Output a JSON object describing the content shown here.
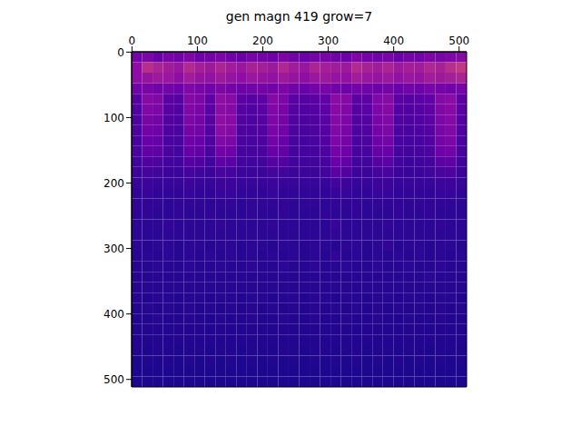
{
  "chart_data": {
    "type": "heatmap",
    "title": "gen magn 419 grow=7",
    "xlim": [
      -0.5,
      511.5
    ],
    "ylim": [
      511.5,
      -0.5
    ],
    "xticks": [
      0,
      100,
      200,
      300,
      400,
      500
    ],
    "yticks": [
      0,
      100,
      200,
      300,
      400,
      500
    ],
    "color_range": [
      0,
      1
    ],
    "cells": [
      [
        0.22,
        0.25,
        0.2,
        0.24,
        0.22,
        0.26,
        0.21,
        0.23,
        0.25,
        0.22,
        0.2,
        0.24,
        0.23,
        0.21,
        0.25,
        0.22,
        0.2,
        0.23,
        0.24,
        0.22,
        0.21,
        0.25,
        0.23,
        0.22,
        0.24,
        0.2,
        0.23,
        0.22,
        0.25,
        0.24,
        0.26,
        0.28
      ],
      [
        0.3,
        0.42,
        0.38,
        0.35,
        0.33,
        0.4,
        0.36,
        0.34,
        0.38,
        0.35,
        0.33,
        0.37,
        0.36,
        0.34,
        0.39,
        0.35,
        0.33,
        0.38,
        0.36,
        0.35,
        0.34,
        0.4,
        0.37,
        0.35,
        0.38,
        0.34,
        0.36,
        0.35,
        0.39,
        0.37,
        0.42,
        0.45
      ],
      [
        0.3,
        0.32,
        0.34,
        0.33,
        0.3,
        0.35,
        0.32,
        0.31,
        0.34,
        0.32,
        0.3,
        0.33,
        0.32,
        0.31,
        0.34,
        0.32,
        0.3,
        0.33,
        0.34,
        0.32,
        0.31,
        0.35,
        0.33,
        0.32,
        0.34,
        0.31,
        0.33,
        0.32,
        0.35,
        0.34,
        0.36,
        0.38
      ],
      [
        0.22,
        0.24,
        0.22,
        0.23,
        0.21,
        0.26,
        0.24,
        0.22,
        0.25,
        0.23,
        0.21,
        0.22,
        0.23,
        0.22,
        0.25,
        0.22,
        0.2,
        0.23,
        0.24,
        0.22,
        0.21,
        0.23,
        0.22,
        0.21,
        0.23,
        0.2,
        0.22,
        0.21,
        0.24,
        0.23,
        0.22,
        0.24
      ],
      [
        0.15,
        0.28,
        0.26,
        0.16,
        0.15,
        0.27,
        0.25,
        0.17,
        0.3,
        0.28,
        0.16,
        0.15,
        0.17,
        0.27,
        0.25,
        0.16,
        0.15,
        0.16,
        0.18,
        0.29,
        0.27,
        0.16,
        0.17,
        0.26,
        0.28,
        0.16,
        0.15,
        0.16,
        0.18,
        0.27,
        0.29,
        0.17
      ],
      [
        0.14,
        0.26,
        0.25,
        0.15,
        0.14,
        0.26,
        0.24,
        0.16,
        0.29,
        0.27,
        0.15,
        0.14,
        0.16,
        0.26,
        0.24,
        0.15,
        0.14,
        0.15,
        0.17,
        0.28,
        0.26,
        0.15,
        0.16,
        0.25,
        0.27,
        0.15,
        0.14,
        0.15,
        0.17,
        0.26,
        0.28,
        0.16
      ],
      [
        0.13,
        0.24,
        0.23,
        0.14,
        0.13,
        0.25,
        0.23,
        0.15,
        0.3,
        0.28,
        0.14,
        0.13,
        0.15,
        0.25,
        0.23,
        0.14,
        0.13,
        0.14,
        0.16,
        0.27,
        0.25,
        0.14,
        0.15,
        0.24,
        0.26,
        0.14,
        0.13,
        0.14,
        0.16,
        0.25,
        0.27,
        0.15
      ],
      [
        0.13,
        0.22,
        0.21,
        0.13,
        0.13,
        0.23,
        0.22,
        0.14,
        0.29,
        0.27,
        0.13,
        0.13,
        0.14,
        0.24,
        0.22,
        0.13,
        0.12,
        0.13,
        0.15,
        0.26,
        0.24,
        0.13,
        0.14,
        0.23,
        0.25,
        0.13,
        0.12,
        0.13,
        0.15,
        0.24,
        0.26,
        0.14
      ],
      [
        0.12,
        0.2,
        0.19,
        0.12,
        0.12,
        0.21,
        0.2,
        0.13,
        0.26,
        0.25,
        0.12,
        0.12,
        0.13,
        0.22,
        0.2,
        0.12,
        0.11,
        0.12,
        0.14,
        0.25,
        0.23,
        0.12,
        0.13,
        0.21,
        0.23,
        0.12,
        0.11,
        0.12,
        0.14,
        0.23,
        0.25,
        0.13
      ],
      [
        0.12,
        0.18,
        0.17,
        0.12,
        0.11,
        0.19,
        0.18,
        0.12,
        0.22,
        0.21,
        0.11,
        0.11,
        0.12,
        0.19,
        0.18,
        0.11,
        0.11,
        0.11,
        0.13,
        0.23,
        0.21,
        0.11,
        0.12,
        0.19,
        0.2,
        0.11,
        0.1,
        0.11,
        0.13,
        0.21,
        0.22,
        0.12
      ],
      [
        0.1,
        0.14,
        0.13,
        0.1,
        0.1,
        0.15,
        0.14,
        0.1,
        0.17,
        0.16,
        0.1,
        0.1,
        0.1,
        0.15,
        0.14,
        0.1,
        0.1,
        0.1,
        0.11,
        0.2,
        0.18,
        0.1,
        0.1,
        0.15,
        0.16,
        0.1,
        0.09,
        0.1,
        0.11,
        0.16,
        0.17,
        0.1
      ],
      [
        0.09,
        0.11,
        0.1,
        0.09,
        0.09,
        0.11,
        0.1,
        0.09,
        0.12,
        0.11,
        0.09,
        0.09,
        0.09,
        0.11,
        0.1,
        0.09,
        0.09,
        0.09,
        0.1,
        0.16,
        0.14,
        0.09,
        0.09,
        0.11,
        0.12,
        0.09,
        0.08,
        0.09,
        0.1,
        0.12,
        0.13,
        0.09
      ],
      [
        0.08,
        0.09,
        0.08,
        0.08,
        0.08,
        0.09,
        0.08,
        0.08,
        0.09,
        0.09,
        0.08,
        0.08,
        0.08,
        0.09,
        0.08,
        0.08,
        0.08,
        0.08,
        0.08,
        0.1,
        0.09,
        0.08,
        0.08,
        0.09,
        0.09,
        0.08,
        0.08,
        0.08,
        0.08,
        0.09,
        0.09,
        0.08
      ],
      [
        0.07,
        0.08,
        0.07,
        0.07,
        0.07,
        0.08,
        0.07,
        0.07,
        0.08,
        0.08,
        0.07,
        0.07,
        0.07,
        0.08,
        0.07,
        0.07,
        0.07,
        0.07,
        0.07,
        0.08,
        0.08,
        0.07,
        0.07,
        0.08,
        0.08,
        0.07,
        0.07,
        0.07,
        0.07,
        0.08,
        0.08,
        0.07
      ],
      [
        0.07,
        0.07,
        0.07,
        0.06,
        0.07,
        0.07,
        0.07,
        0.06,
        0.07,
        0.07,
        0.06,
        0.07,
        0.07,
        0.07,
        0.07,
        0.06,
        0.07,
        0.07,
        0.06,
        0.07,
        0.07,
        0.07,
        0.06,
        0.07,
        0.07,
        0.07,
        0.06,
        0.07,
        0.07,
        0.07,
        0.07,
        0.06
      ],
      [
        0.06,
        0.07,
        0.06,
        0.06,
        0.07,
        0.06,
        0.06,
        0.07,
        0.06,
        0.06,
        0.06,
        0.07,
        0.06,
        0.06,
        0.07,
        0.06,
        0.06,
        0.06,
        0.07,
        0.06,
        0.06,
        0.07,
        0.06,
        0.06,
        0.06,
        0.07,
        0.06,
        0.06,
        0.07,
        0.06,
        0.06,
        0.06
      ],
      [
        0.06,
        0.06,
        0.06,
        0.07,
        0.06,
        0.06,
        0.06,
        0.06,
        0.07,
        0.06,
        0.06,
        0.06,
        0.06,
        0.07,
        0.06,
        0.06,
        0.06,
        0.06,
        0.06,
        0.08,
        0.06,
        0.06,
        0.06,
        0.06,
        0.07,
        0.06,
        0.06,
        0.06,
        0.06,
        0.07,
        0.06,
        0.06
      ],
      [
        0.06,
        0.06,
        0.06,
        0.06,
        0.06,
        0.06,
        0.06,
        0.06,
        0.06,
        0.06,
        0.06,
        0.06,
        0.06,
        0.06,
        0.06,
        0.06,
        0.06,
        0.06,
        0.06,
        0.07,
        0.06,
        0.06,
        0.06,
        0.06,
        0.06,
        0.06,
        0.06,
        0.06,
        0.06,
        0.06,
        0.06,
        0.06
      ],
      [
        0.06,
        0.05,
        0.06,
        0.06,
        0.05,
        0.06,
        0.06,
        0.05,
        0.06,
        0.06,
        0.05,
        0.06,
        0.06,
        0.05,
        0.06,
        0.06,
        0.05,
        0.06,
        0.06,
        0.05,
        0.06,
        0.06,
        0.05,
        0.06,
        0.07,
        0.05,
        0.06,
        0.06,
        0.05,
        0.06,
        0.06,
        0.05
      ],
      [
        0.05,
        0.06,
        0.05,
        0.06,
        0.05,
        0.06,
        0.05,
        0.06,
        0.05,
        0.06,
        0.05,
        0.06,
        0.05,
        0.06,
        0.05,
        0.06,
        0.05,
        0.06,
        0.05,
        0.07,
        0.05,
        0.06,
        0.05,
        0.06,
        0.05,
        0.06,
        0.05,
        0.06,
        0.05,
        0.06,
        0.05,
        0.06
      ],
      [
        0.05,
        0.05,
        0.06,
        0.05,
        0.05,
        0.06,
        0.05,
        0.05,
        0.06,
        0.05,
        0.05,
        0.06,
        0.05,
        0.05,
        0.06,
        0.05,
        0.05,
        0.06,
        0.05,
        0.05,
        0.06,
        0.05,
        0.05,
        0.06,
        0.05,
        0.05,
        0.06,
        0.05,
        0.05,
        0.06,
        0.05,
        0.05
      ],
      [
        0.05,
        0.05,
        0.05,
        0.05,
        0.05,
        0.05,
        0.05,
        0.05,
        0.05,
        0.05,
        0.05,
        0.05,
        0.05,
        0.05,
        0.05,
        0.05,
        0.05,
        0.05,
        0.05,
        0.05,
        0.05,
        0.05,
        0.05,
        0.05,
        0.05,
        0.05,
        0.05,
        0.05,
        0.06,
        0.05,
        0.05,
        0.05
      ],
      [
        0.05,
        0.05,
        0.05,
        0.05,
        0.05,
        0.05,
        0.05,
        0.05,
        0.05,
        0.05,
        0.05,
        0.05,
        0.05,
        0.05,
        0.05,
        0.05,
        0.05,
        0.05,
        0.05,
        0.05,
        0.05,
        0.05,
        0.05,
        0.05,
        0.05,
        0.05,
        0.05,
        0.05,
        0.05,
        0.05,
        0.05,
        0.05
      ],
      [
        0.05,
        0.04,
        0.05,
        0.05,
        0.04,
        0.05,
        0.05,
        0.04,
        0.05,
        0.05,
        0.04,
        0.05,
        0.05,
        0.04,
        0.05,
        0.05,
        0.04,
        0.05,
        0.05,
        0.04,
        0.05,
        0.05,
        0.04,
        0.05,
        0.05,
        0.04,
        0.05,
        0.05,
        0.04,
        0.05,
        0.05,
        0.04
      ],
      [
        0.04,
        0.05,
        0.04,
        0.05,
        0.04,
        0.05,
        0.04,
        0.05,
        0.04,
        0.05,
        0.04,
        0.05,
        0.04,
        0.05,
        0.04,
        0.05,
        0.04,
        0.05,
        0.04,
        0.05,
        0.04,
        0.05,
        0.04,
        0.05,
        0.04,
        0.05,
        0.04,
        0.05,
        0.04,
        0.05,
        0.04,
        0.05
      ],
      [
        0.04,
        0.04,
        0.05,
        0.04,
        0.04,
        0.05,
        0.04,
        0.04,
        0.05,
        0.04,
        0.04,
        0.05,
        0.04,
        0.04,
        0.05,
        0.04,
        0.04,
        0.05,
        0.04,
        0.04,
        0.05,
        0.04,
        0.04,
        0.05,
        0.04,
        0.04,
        0.05,
        0.04,
        0.04,
        0.05,
        0.04,
        0.04
      ],
      [
        0.04,
        0.04,
        0.04,
        0.04,
        0.04,
        0.04,
        0.04,
        0.04,
        0.04,
        0.04,
        0.04,
        0.04,
        0.04,
        0.04,
        0.04,
        0.04,
        0.04,
        0.04,
        0.04,
        0.04,
        0.04,
        0.04,
        0.04,
        0.04,
        0.04,
        0.04,
        0.04,
        0.04,
        0.04,
        0.04,
        0.04,
        0.04
      ],
      [
        0.04,
        0.04,
        0.04,
        0.04,
        0.04,
        0.04,
        0.04,
        0.04,
        0.04,
        0.04,
        0.04,
        0.04,
        0.04,
        0.04,
        0.04,
        0.04,
        0.04,
        0.04,
        0.04,
        0.04,
        0.04,
        0.04,
        0.04,
        0.04,
        0.04,
        0.04,
        0.04,
        0.04,
        0.04,
        0.04,
        0.04,
        0.04
      ],
      [
        0.04,
        0.03,
        0.04,
        0.04,
        0.03,
        0.04,
        0.04,
        0.03,
        0.04,
        0.04,
        0.03,
        0.04,
        0.04,
        0.03,
        0.04,
        0.04,
        0.03,
        0.04,
        0.04,
        0.03,
        0.04,
        0.04,
        0.03,
        0.04,
        0.04,
        0.03,
        0.04,
        0.04,
        0.03,
        0.04,
        0.04,
        0.03
      ],
      [
        0.03,
        0.04,
        0.03,
        0.04,
        0.03,
        0.04,
        0.03,
        0.04,
        0.03,
        0.04,
        0.03,
        0.04,
        0.03,
        0.04,
        0.03,
        0.04,
        0.03,
        0.04,
        0.03,
        0.04,
        0.03,
        0.04,
        0.03,
        0.04,
        0.03,
        0.04,
        0.03,
        0.04,
        0.03,
        0.04,
        0.03,
        0.04
      ],
      [
        0.03,
        0.03,
        0.03,
        0.03,
        0.03,
        0.03,
        0.03,
        0.03,
        0.03,
        0.03,
        0.03,
        0.03,
        0.03,
        0.03,
        0.03,
        0.03,
        0.03,
        0.03,
        0.03,
        0.03,
        0.03,
        0.03,
        0.03,
        0.03,
        0.03,
        0.03,
        0.03,
        0.03,
        0.03,
        0.03,
        0.03,
        0.03
      ],
      [
        0.03,
        0.03,
        0.03,
        0.03,
        0.03,
        0.03,
        0.03,
        0.03,
        0.03,
        0.03,
        0.03,
        0.03,
        0.03,
        0.03,
        0.03,
        0.03,
        0.03,
        0.03,
        0.03,
        0.03,
        0.03,
        0.03,
        0.03,
        0.03,
        0.03,
        0.03,
        0.03,
        0.03,
        0.03,
        0.03,
        0.03,
        0.03
      ]
    ]
  }
}
